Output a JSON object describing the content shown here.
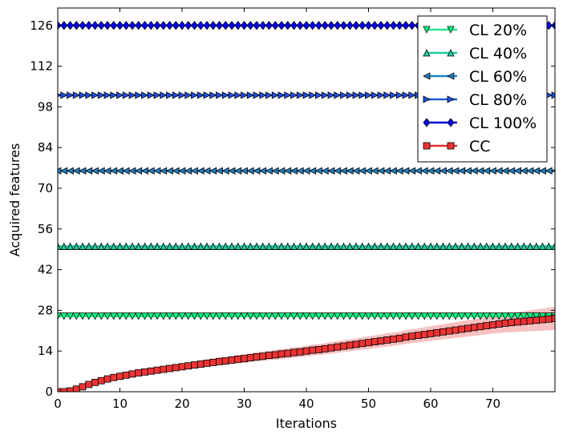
{
  "chart_data": {
    "type": "line",
    "xlabel": "Iterations",
    "ylabel": "Acquired features",
    "xlim": [
      0,
      80
    ],
    "ylim": [
      0,
      132
    ],
    "xticks": [
      0,
      10,
      20,
      30,
      40,
      50,
      60,
      70
    ],
    "yticks": [
      0,
      14,
      28,
      42,
      56,
      70,
      84,
      98,
      112,
      126
    ],
    "grid": false,
    "legend_position": "top-right",
    "x": [
      0,
      1,
      2,
      3,
      4,
      5,
      6,
      7,
      8,
      9,
      10,
      11,
      12,
      13,
      14,
      15,
      16,
      17,
      18,
      19,
      20,
      21,
      22,
      23,
      24,
      25,
      26,
      27,
      28,
      29,
      30,
      31,
      32,
      33,
      34,
      35,
      36,
      37,
      38,
      39,
      40,
      41,
      42,
      43,
      44,
      45,
      46,
      47,
      48,
      49,
      50,
      51,
      52,
      53,
      54,
      55,
      56,
      57,
      58,
      59,
      60,
      61,
      62,
      63,
      64,
      65,
      66,
      67,
      68,
      69,
      70,
      71,
      72,
      73,
      74,
      75,
      76,
      77,
      78,
      79,
      80
    ],
    "series": [
      {
        "name": "CL 20%",
        "constant": 26,
        "marker": "triangle-down",
        "color": "#00ff80",
        "line_color": "#1fe88a"
      },
      {
        "name": "CL 40%",
        "constant": 50,
        "marker": "triangle-up",
        "color": "#18c99a",
        "line_color": "#1ec99c"
      },
      {
        "name": "CL 60%",
        "constant": 76,
        "marker": "triangle-left",
        "color": "#1f7fbf",
        "line_color": "#1f84c4"
      },
      {
        "name": "CL 80%",
        "constant": 102,
        "marker": "triangle-right",
        "color": "#2050e0",
        "line_color": "#1c5bd6"
      },
      {
        "name": "CL 100%",
        "constant": 126,
        "marker": "diamond",
        "color": "#0000ff",
        "line_color": "#0000dd"
      },
      {
        "name": "CC",
        "marker": "square",
        "color": "#ee3333",
        "line_color": "#e03030",
        "values": [
          0,
          0,
          0.3,
          0.9,
          1.7,
          2.5,
          3.2,
          3.8,
          4.4,
          4.9,
          5.3,
          5.7,
          6.1,
          6.5,
          6.8,
          7.1,
          7.4,
          7.7,
          8.0,
          8.3,
          8.6,
          8.9,
          9.2,
          9.5,
          9.8,
          10.1,
          10.4,
          10.6,
          10.9,
          11.2,
          11.4,
          11.7,
          12.0,
          12.2,
          12.5,
          12.7,
          13.0,
          13.2,
          13.5,
          13.7,
          14.0,
          14.3,
          14.5,
          14.8,
          15.1,
          15.4,
          15.7,
          16.0,
          16.3,
          16.6,
          16.9,
          17.2,
          17.5,
          17.8,
          18.1,
          18.4,
          18.8,
          19.1,
          19.4,
          19.7,
          20.0,
          20.3,
          20.6,
          20.9,
          21.2,
          21.5,
          21.8,
          22.1,
          22.4,
          22.7,
          23.0,
          23.3,
          23.6,
          23.8,
          24.0,
          24.2,
          24.4,
          24.6,
          24.8,
          25.0,
          25.2
        ],
        "band_halfwidth": [
          0,
          0,
          0.3,
          0.4,
          0.5,
          0.5,
          0.6,
          0.6,
          0.7,
          0.7,
          0.8,
          0.8,
          0.9,
          0.9,
          1.0,
          1.0,
          1.0,
          1.1,
          1.1,
          1.1,
          1.2,
          1.2,
          1.2,
          1.3,
          1.3,
          1.3,
          1.4,
          1.4,
          1.4,
          1.5,
          1.5,
          1.5,
          1.6,
          1.6,
          1.6,
          1.7,
          1.7,
          1.7,
          1.8,
          1.8,
          1.8,
          1.9,
          1.9,
          1.9,
          2.0,
          2.0,
          2.0,
          2.1,
          2.1,
          2.1,
          2.2,
          2.2,
          2.2,
          2.3,
          2.3,
          2.3,
          2.4,
          2.4,
          2.4,
          2.5,
          2.5,
          2.6,
          2.6,
          2.7,
          2.7,
          2.8,
          2.8,
          2.9,
          2.9,
          3.0,
          3.0,
          3.1,
          3.2,
          3.3,
          3.4,
          3.5,
          3.6,
          3.7,
          3.8,
          3.9,
          4.0
        ],
        "band_color": "#f4a6a6"
      }
    ]
  }
}
